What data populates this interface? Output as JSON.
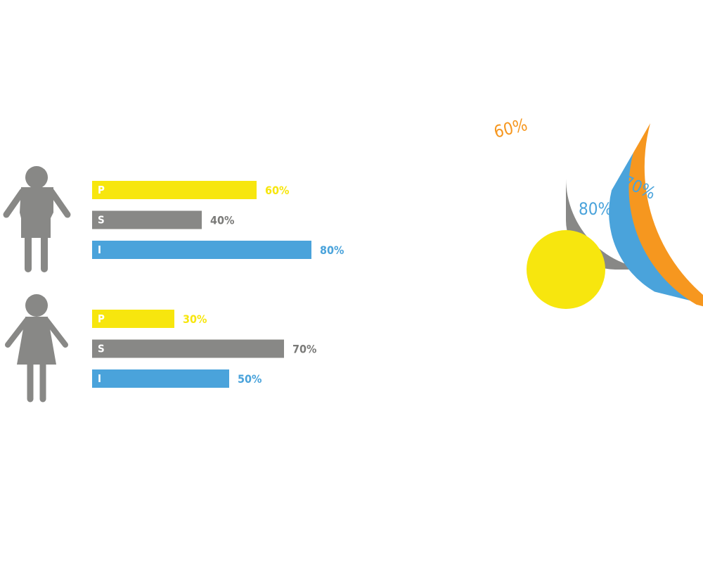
{
  "colors": {
    "p": "#f7e60e",
    "s": "#888886",
    "i": "#4aa3db",
    "orange": "#f6971f",
    "icon": "#888886"
  },
  "icons": {
    "male": "male-person-icon",
    "female": "female-person-icon"
  },
  "chart_data": [
    {
      "type": "bar",
      "orientation": "horizontal",
      "group": "male",
      "xlim": [
        0,
        100
      ],
      "categories": [
        "P",
        "S",
        "I"
      ],
      "values": [
        60,
        40,
        80
      ],
      "labels": [
        "60%",
        "40%",
        "80%"
      ],
      "colors": [
        "#f7e60e",
        "#888886",
        "#4aa3db"
      ]
    },
    {
      "type": "bar",
      "orientation": "horizontal",
      "group": "female",
      "xlim": [
        0,
        100
      ],
      "categories": [
        "P",
        "S",
        "I"
      ],
      "values": [
        30,
        70,
        50
      ],
      "labels": [
        "30%",
        "70%",
        "50%"
      ],
      "colors": [
        "#f7e60e",
        "#888886",
        "#4aa3db"
      ]
    },
    {
      "type": "pie",
      "style": "radial-rings",
      "rings": [
        {
          "ring": "inner",
          "color": "#888886",
          "value": 80,
          "label": "80%",
          "label_color": "#4aa3db"
        },
        {
          "ring": "middle",
          "color": "#4aa3db",
          "value": 70,
          "label": "70%",
          "label_color": "#4aa3db"
        },
        {
          "ring": "outer",
          "color": "#f6971f",
          "value": 60,
          "label": "60%",
          "label_color": "#f6971f"
        }
      ],
      "center_color": "#f7e60e"
    }
  ]
}
